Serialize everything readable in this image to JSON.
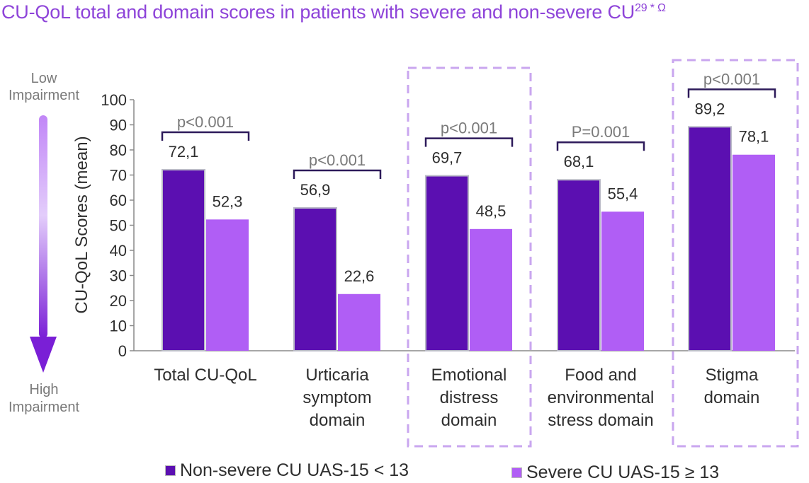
{
  "title": "CU-QoL total and domain scores in patients with severe and non-severe CU",
  "title_superscript": "29 * Ω",
  "scale": {
    "top_label": [
      "Low",
      "Impairment"
    ],
    "bottom_label": [
      "High",
      "Impairment"
    ]
  },
  "colors": {
    "non_severe": "#5b0fb1",
    "severe": "#b05ef5",
    "bracket": "#2d1a5a",
    "highlight_box": "#c9a6ef",
    "p_text": "#7a7a7a",
    "title": "#8e44d9"
  },
  "chart_data": {
    "type": "bar",
    "title": "CU-QoL total and domain scores in patients with severe and non-severe CU",
    "ylabel": "CU-QoL Scores (mean)",
    "xlabel": "",
    "ylim": [
      0,
      100
    ],
    "yticks": [
      0,
      10,
      20,
      30,
      40,
      50,
      60,
      70,
      80,
      90,
      100
    ],
    "grid": false,
    "legend_position": "bottom",
    "categories": [
      [
        "Total CU-QoL"
      ],
      [
        "Urticaria",
        "symptom",
        "domain"
      ],
      [
        "Emotional",
        "distress",
        "domain"
      ],
      [
        "Food and",
        "environmental",
        "stress domain"
      ],
      [
        "Stigma",
        "domain"
      ]
    ],
    "series": [
      {
        "name": "Non-severe CU UAS-15 < 13",
        "values": [
          72.1,
          56.9,
          69.7,
          68.1,
          89.2
        ],
        "labels": [
          "72,1",
          "56,9",
          "69,7",
          "68,1",
          "89,2"
        ]
      },
      {
        "name": "Severe CU UAS-15 ≥ 13",
        "values": [
          52.3,
          22.6,
          48.5,
          55.4,
          78.1
        ],
        "labels": [
          "52,3",
          "22,6",
          "48,5",
          "55,4",
          "78,1"
        ]
      }
    ],
    "p_values": [
      "p<0.001",
      "p<0.001",
      "p<0.001",
      "P=0.001",
      "p<0.001"
    ],
    "highlighted_categories": [
      2,
      4
    ]
  }
}
